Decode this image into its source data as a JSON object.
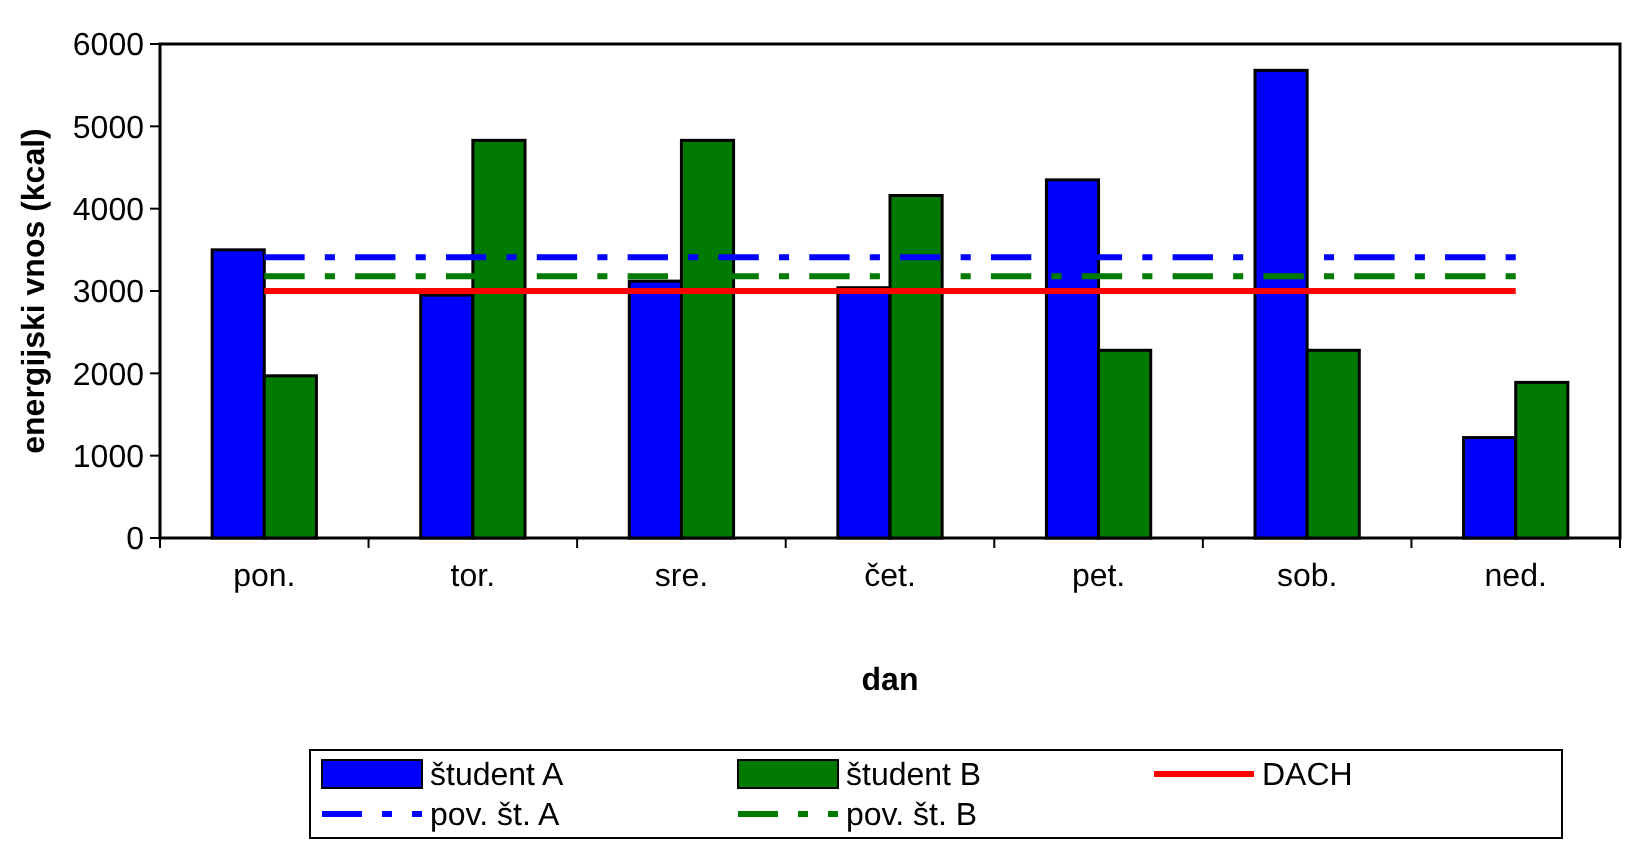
{
  "chart_data": {
    "type": "bar",
    "xlabel": "dan",
    "ylabel": "energijski vnos (kcal)",
    "categories": [
      "pon.",
      "tor.",
      "sre.",
      "čet.",
      "pet.",
      "sob.",
      "ned."
    ],
    "series": [
      {
        "name": "študent A",
        "color": "#0000ff",
        "values": [
          3500,
          2950,
          3120,
          3040,
          4350,
          5680,
          1220
        ]
      },
      {
        "name": "študent B",
        "color": "#007a00",
        "values": [
          1970,
          4830,
          4830,
          4160,
          2280,
          2280,
          1890
        ]
      },
      {
        "name": "DACH",
        "type": "line",
        "color": "#ff0000",
        "line_style": "solid",
        "values": [
          3000,
          3000,
          3000,
          3000,
          3000,
          3000,
          3000
        ]
      },
      {
        "name": "pov. št. A",
        "type": "line",
        "color": "#0000ff",
        "line_style": "dashed",
        "values": [
          3410,
          3410,
          3410,
          3410,
          3410,
          3410,
          3410
        ]
      },
      {
        "name": "pov. št. B",
        "type": "line",
        "color": "#007a00",
        "line_style": "dashed",
        "values": [
          3180,
          3180,
          3180,
          3180,
          3180,
          3180,
          3180
        ]
      }
    ],
    "ylim": [
      0,
      6000
    ],
    "yticks": [
      0,
      1000,
      2000,
      3000,
      4000,
      5000,
      6000
    ],
    "grid": false,
    "legend": "bottom",
    "marker": "none"
  }
}
